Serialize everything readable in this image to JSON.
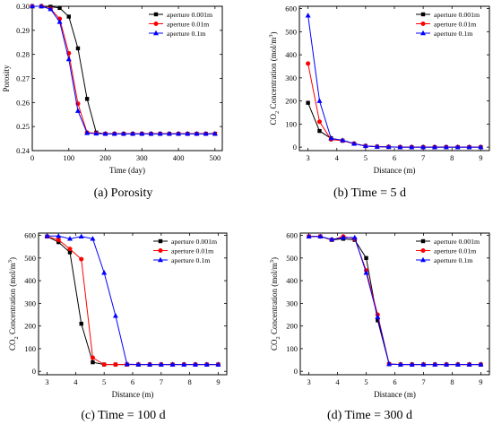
{
  "captions": [
    "(a) Porosity",
    "(b) Time = 5 d",
    "(c) Time = 100 d",
    "(d) Time = 300 d"
  ],
  "colors": {
    "aperture_0001": "#000000",
    "aperture_001": "#ff0000",
    "aperture_01": "#0000ff"
  },
  "chart_data": [
    {
      "type": "line",
      "title": "",
      "xlabel": "Time (day)",
      "ylabel": "Porosity",
      "xlim": [
        0,
        520
      ],
      "ylim": [
        0.24,
        0.3
      ],
      "xticks": [
        0,
        100,
        200,
        300,
        400,
        500
      ],
      "yticks": [
        0.24,
        0.25,
        0.26,
        0.27,
        0.28,
        0.29,
        0.3
      ],
      "ytick_labels": [
        "0.24",
        "0.25",
        "0.26",
        "0.27",
        "0.28",
        "0.29",
        "0.30"
      ],
      "grid": false,
      "legend": "top-right",
      "series": [
        {
          "name": "aperture 0.001m",
          "color": "#000000",
          "marker": "square",
          "x": [
            0,
            25,
            50,
            75,
            100,
            125,
            150,
            175,
            200,
            225,
            250,
            275,
            300,
            325,
            350,
            375,
            400,
            425,
            450,
            475,
            500
          ],
          "y": [
            0.3,
            0.3,
            0.2998,
            0.2993,
            0.2957,
            0.2825,
            0.2615,
            0.2475,
            0.247,
            0.247,
            0.247,
            0.247,
            0.247,
            0.247,
            0.247,
            0.247,
            0.247,
            0.247,
            0.247,
            0.247,
            0.247
          ]
        },
        {
          "name": "aperture 0.01m",
          "color": "#ff0000",
          "marker": "circle",
          "x": [
            0,
            25,
            50,
            75,
            100,
            125,
            150,
            175,
            200,
            225,
            250,
            275,
            300,
            325,
            350,
            375,
            400,
            425,
            450,
            475,
            500
          ],
          "y": [
            0.3,
            0.3,
            0.299,
            0.2948,
            0.2805,
            0.2595,
            0.2475,
            0.2472,
            0.247,
            0.247,
            0.247,
            0.247,
            0.247,
            0.247,
            0.247,
            0.247,
            0.247,
            0.247,
            0.247,
            0.247,
            0.247
          ]
        },
        {
          "name": "aperture 0.1m",
          "color": "#0000ff",
          "marker": "triangle",
          "x": [
            0,
            25,
            50,
            75,
            100,
            125,
            150,
            175,
            200,
            225,
            250,
            275,
            300,
            325,
            350,
            375,
            400,
            425,
            450,
            475,
            500
          ],
          "y": [
            0.3,
            0.3,
            0.2988,
            0.2935,
            0.278,
            0.2565,
            0.2473,
            0.2471,
            0.247,
            0.247,
            0.247,
            0.247,
            0.247,
            0.247,
            0.247,
            0.247,
            0.247,
            0.247,
            0.247,
            0.247,
            0.247
          ]
        }
      ]
    },
    {
      "type": "line",
      "title": "",
      "xlabel": "Distance (m)",
      "ylabel": "CO2 Concentration (mol/m3)",
      "xlim": [
        2.7,
        9.3
      ],
      "ylim": [
        -15,
        610
      ],
      "xticks": [
        3,
        4,
        5,
        6,
        7,
        8,
        9
      ],
      "yticks": [
        0,
        100,
        200,
        300,
        400,
        500,
        600
      ],
      "grid": false,
      "legend": "top-right",
      "series": [
        {
          "name": "aperture 0.001m",
          "color": "#000000",
          "marker": "square",
          "x": [
            3,
            3.4,
            3.8,
            4.2,
            4.6,
            5.0,
            5.4,
            5.8,
            6.2,
            6.6,
            7.0,
            7.4,
            7.8,
            8.2,
            8.6,
            9.0
          ],
          "y": [
            192,
            70,
            38,
            28,
            15,
            5,
            2,
            1,
            0,
            0,
            0,
            0,
            0,
            0,
            0,
            0
          ]
        },
        {
          "name": "aperture 0.01m",
          "color": "#ff0000",
          "marker": "circle",
          "x": [
            3,
            3.4,
            3.8,
            4.2,
            4.6,
            5.0,
            5.4,
            5.8,
            6.2,
            6.6,
            7.0,
            7.4,
            7.8,
            8.2,
            8.6,
            9.0
          ],
          "y": [
            362,
            110,
            33,
            28,
            15,
            5,
            2,
            1,
            0,
            0,
            0,
            0,
            0,
            0,
            0,
            0
          ]
        },
        {
          "name": "aperture 0.1m",
          "color": "#0000ff",
          "marker": "triangle",
          "x": [
            3,
            3.4,
            3.8,
            4.2,
            4.6,
            5.0,
            5.4,
            5.8,
            6.2,
            6.6,
            7.0,
            7.4,
            7.8,
            8.2,
            8.6,
            9.0
          ],
          "y": [
            570,
            200,
            38,
            30,
            15,
            5,
            2,
            1,
            0,
            0,
            0,
            0,
            0,
            0,
            0,
            0
          ]
        }
      ]
    },
    {
      "type": "line",
      "title": "",
      "xlabel": "Distance (m)",
      "ylabel": "CO2 Concentration (mol/m3)",
      "xlim": [
        2.7,
        9.3
      ],
      "ylim": [
        -15,
        610
      ],
      "xticks": [
        3,
        4,
        5,
        6,
        7,
        8,
        9
      ],
      "yticks": [
        0,
        100,
        200,
        300,
        400,
        500,
        600
      ],
      "grid": false,
      "legend": "top-right",
      "series": [
        {
          "name": "aperture 0.001m",
          "color": "#000000",
          "marker": "square",
          "x": [
            3,
            3.4,
            3.8,
            4.2,
            4.6,
            5.0,
            5.4,
            5.8,
            6.2,
            6.6,
            7.0,
            7.4,
            7.8,
            8.2,
            8.6,
            9.0
          ],
          "y": [
            595,
            570,
            525,
            210,
            40,
            30,
            30,
            30,
            30,
            30,
            30,
            30,
            30,
            30,
            30,
            30
          ]
        },
        {
          "name": "aperture 0.01m",
          "color": "#ff0000",
          "marker": "circle",
          "x": [
            3,
            3.4,
            3.8,
            4.2,
            4.6,
            5.0,
            5.4,
            5.8,
            6.2,
            6.6,
            7.0,
            7.4,
            7.8,
            8.2,
            8.6,
            9.0
          ],
          "y": [
            595,
            580,
            540,
            495,
            60,
            30,
            30,
            30,
            30,
            30,
            30,
            30,
            30,
            30,
            30,
            30
          ]
        },
        {
          "name": "aperture 0.1m",
          "color": "#0000ff",
          "marker": "triangle",
          "x": [
            3,
            3.4,
            3.8,
            4.2,
            4.6,
            5.0,
            5.4,
            5.8,
            6.2,
            6.6,
            7.0,
            7.4,
            7.8,
            8.2,
            8.6,
            9.0
          ],
          "y": [
            597,
            597,
            585,
            595,
            585,
            435,
            245,
            32,
            30,
            30,
            30,
            30,
            30,
            30,
            30,
            30
          ]
        }
      ]
    },
    {
      "type": "line",
      "title": "",
      "xlabel": "Distance (m)",
      "ylabel": "CO2 Concentration (mol/m3)",
      "xlim": [
        2.7,
        9.3
      ],
      "ylim": [
        -15,
        610
      ],
      "xticks": [
        3,
        4,
        5,
        6,
        7,
        8,
        9
      ],
      "yticks": [
        0,
        100,
        200,
        300,
        400,
        500,
        600
      ],
      "grid": false,
      "legend": "top-right",
      "series": [
        {
          "name": "aperture 0.001m",
          "color": "#000000",
          "marker": "square",
          "x": [
            3,
            3.4,
            3.8,
            4.2,
            4.6,
            5.0,
            5.4,
            5.8,
            6.2,
            6.6,
            7.0,
            7.4,
            7.8,
            8.2,
            8.6,
            9.0
          ],
          "y": [
            595,
            595,
            580,
            585,
            580,
            500,
            225,
            32,
            30,
            30,
            30,
            30,
            30,
            30,
            30,
            30
          ]
        },
        {
          "name": "aperture 0.01m",
          "color": "#ff0000",
          "marker": "circle",
          "x": [
            3,
            3.4,
            3.8,
            4.2,
            4.6,
            5.0,
            5.4,
            5.8,
            6.2,
            6.6,
            7.0,
            7.4,
            7.8,
            8.2,
            8.6,
            9.0
          ],
          "y": [
            595,
            595,
            580,
            595,
            585,
            445,
            250,
            32,
            30,
            30,
            30,
            30,
            30,
            30,
            30,
            30
          ]
        },
        {
          "name": "aperture 0.1m",
          "color": "#0000ff",
          "marker": "triangle",
          "x": [
            3,
            3.4,
            3.8,
            4.2,
            4.6,
            5.0,
            5.4,
            5.8,
            6.2,
            6.6,
            7.0,
            7.4,
            7.8,
            8.2,
            8.6,
            9.0
          ],
          "y": [
            595,
            595,
            582,
            590,
            590,
            435,
            240,
            32,
            30,
            30,
            30,
            30,
            30,
            30,
            30,
            30
          ]
        }
      ]
    }
  ]
}
